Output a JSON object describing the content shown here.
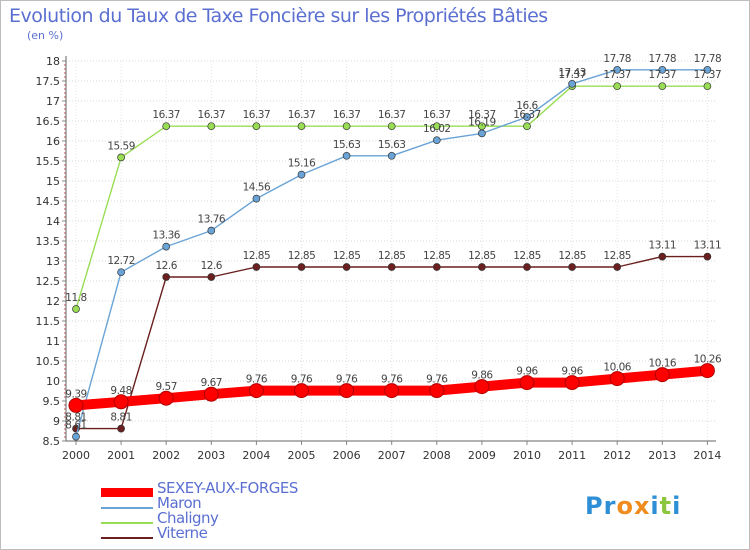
{
  "chart_data": {
    "type": "line",
    "title": "Evolution du Taux de Taxe Foncière sur les Propriétés Bâties",
    "ylabel": "(en %)",
    "xlabel": "",
    "categories": [
      "2000",
      "2001",
      "2002",
      "2003",
      "2004",
      "2005",
      "2006",
      "2007",
      "2008",
      "2009",
      "2010",
      "2011",
      "2012",
      "2013",
      "2014"
    ],
    "ylim": [
      8.5,
      18
    ],
    "yticks": [
      "8.5",
      "9",
      "9.5",
      "10",
      "10.5",
      "11",
      "11.5",
      "12",
      "12.5",
      "13",
      "13.5",
      "14",
      "14.5",
      "15",
      "15.5",
      "16",
      "16.5",
      "17",
      "17.5",
      "18"
    ],
    "grid": true,
    "legend_position": "bottom-left",
    "series": [
      {
        "name": "SEXEY-AUX-FORGES",
        "color": "#ff0000",
        "values": [
          9.39,
          9.48,
          9.57,
          9.67,
          9.76,
          9.76,
          9.76,
          9.76,
          9.76,
          9.86,
          9.96,
          9.96,
          10.06,
          10.16,
          10.26
        ],
        "labels": [
          "9.39",
          "9.48",
          "9.57",
          "9.67",
          "9.76",
          "9.76",
          "9.76",
          "9.76",
          "9.76",
          "9.86",
          "9.96",
          "9.96",
          "10.06",
          "10.16",
          "10.26"
        ]
      },
      {
        "name": "Maron",
        "color": "#6aa3d6",
        "values": [
          8.61,
          12.72,
          13.36,
          13.76,
          14.56,
          15.16,
          15.63,
          15.63,
          16.02,
          16.19,
          16.6,
          17.43,
          17.78,
          17.78,
          17.78
        ],
        "labels": [
          "8.61",
          "12.72",
          "13.36",
          "13.76",
          "14.56",
          "15.16",
          "15.63",
          "15.63",
          "16.02",
          "16.19",
          "16.6",
          "17.43",
          "17.78",
          "17.78",
          "17.78"
        ]
      },
      {
        "name": "Chaligny",
        "color": "#99dd55",
        "values": [
          11.8,
          15.59,
          16.37,
          16.37,
          16.37,
          16.37,
          16.37,
          16.37,
          16.37,
          16.37,
          16.37,
          17.37,
          17.37,
          17.37,
          17.37
        ],
        "labels": [
          "11.8",
          "15.59",
          "16.37",
          "16.37",
          "16.37",
          "16.37",
          "16.37",
          "16.37",
          "16.37",
          "16.37",
          "16.37",
          "17.37",
          "17.37",
          "17.37",
          "17.37"
        ]
      },
      {
        "name": "Viterne",
        "color": "#6b1f1f",
        "values": [
          8.81,
          8.81,
          12.6,
          12.6,
          12.85,
          12.85,
          12.85,
          12.85,
          12.85,
          12.85,
          12.85,
          12.85,
          12.85,
          13.11,
          13.11
        ],
        "labels": [
          "8.81",
          "8.81",
          "12.6",
          "12.6",
          "12.85",
          "12.85",
          "12.85",
          "12.85",
          "12.85",
          "12.85",
          "12.85",
          "12.85",
          "12.85",
          "13.11",
          "13.11"
        ]
      }
    ]
  },
  "logo": {
    "text": "Proxiti",
    "letters": [
      "P",
      "r",
      "o",
      "x",
      "i",
      "t",
      "i"
    ],
    "colors": [
      "#2e8fd6",
      "#2e8fd6",
      "#f08c1e",
      "#f08c1e",
      "#2e8fd6",
      "#8cc63f",
      "#2e8fd6"
    ]
  }
}
